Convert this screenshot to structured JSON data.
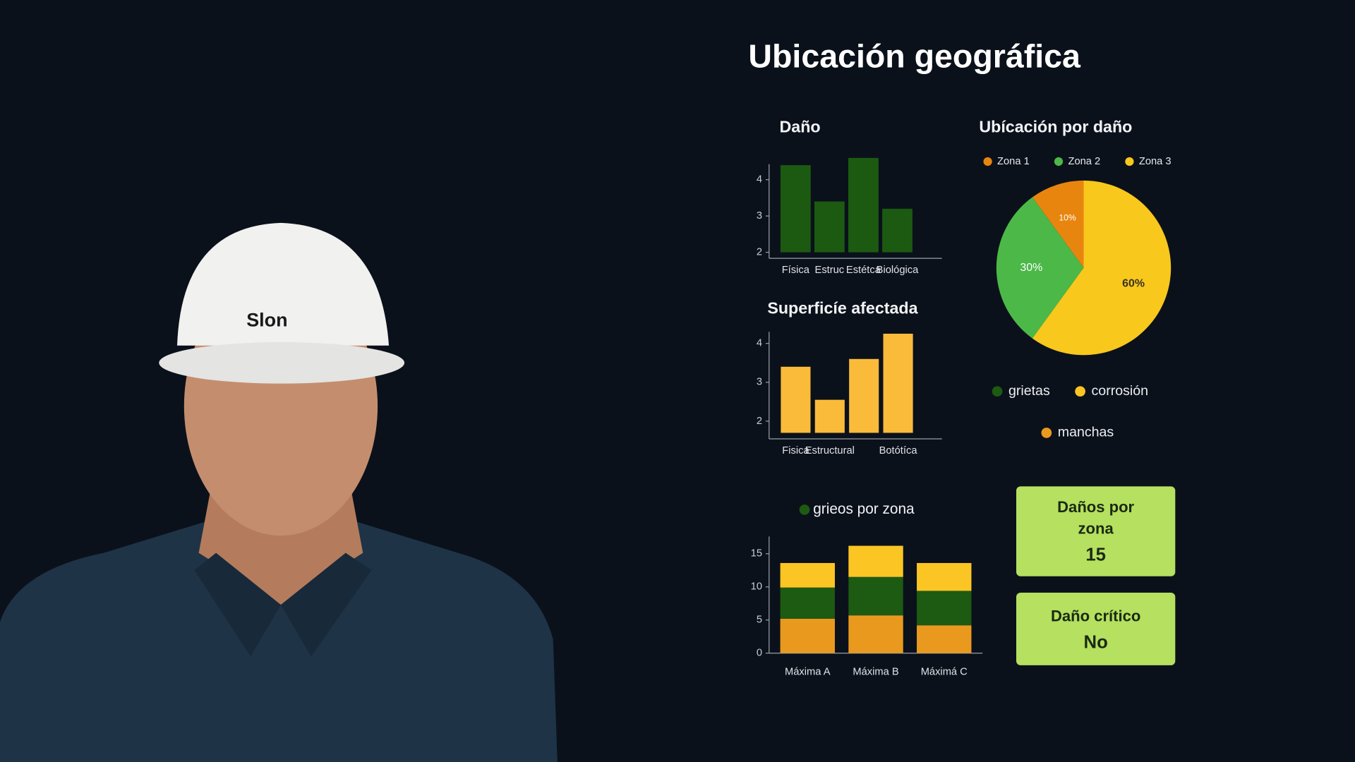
{
  "page_title": "Ubicación geográfica",
  "helmet_logo": "Slon",
  "chart_data": [
    {
      "type": "bar",
      "title": "Daño",
      "categories": [
        "Física",
        "Estruc",
        "Estétca",
        "Biológica"
      ],
      "values": [
        4.4,
        3.4,
        4.6,
        3.2
      ],
      "color": "#1c5a12",
      "ylim": [
        2,
        4.6
      ],
      "yticks": [
        2,
        3,
        4
      ]
    },
    {
      "type": "bar",
      "title": "Superficíe afectada",
      "categories": [
        "Fisica",
        "Estructural",
        null,
        "Botótíca"
      ],
      "values": [
        3.4,
        2.55,
        3.6,
        4.25
      ],
      "color": "#fbbb3a",
      "ylim": [
        1.7,
        4.3
      ],
      "yticks": [
        2,
        3,
        4
      ]
    },
    {
      "type": "pie",
      "title": "Ubícación por daño",
      "categories": [
        "Zona 1",
        "Zona 2",
        "Zona 3"
      ],
      "values": [
        10,
        30,
        60
      ],
      "value_labels": [
        "10%",
        "30%",
        "60%"
      ],
      "colors": [
        "#e8850f",
        "#4cb848",
        "#f8c81c"
      ]
    },
    {
      "type": "stacked_bar",
      "title": "grieos por zona",
      "categories": [
        "Máxima A",
        "Máxima B",
        "Máximá C"
      ],
      "ylim": [
        0,
        17.6
      ],
      "yticks": [
        0,
        5,
        10,
        15
      ],
      "series": [
        {
          "name": "manchas",
          "color": "#e99a1e",
          "values": [
            5.2,
            5.7,
            4.2
          ]
        },
        {
          "name": "grietas",
          "color": "#1d5a12",
          "values": [
            4.7,
            5.8,
            5.2
          ]
        },
        {
          "name": "corrosión",
          "color": "#fbc523",
          "values": [
            3.7,
            4.7,
            4.2
          ]
        }
      ]
    }
  ],
  "kpis": [
    {
      "label": "Daños por zona",
      "value": "15"
    },
    {
      "label": "Daño crítico",
      "value": "No"
    }
  ]
}
